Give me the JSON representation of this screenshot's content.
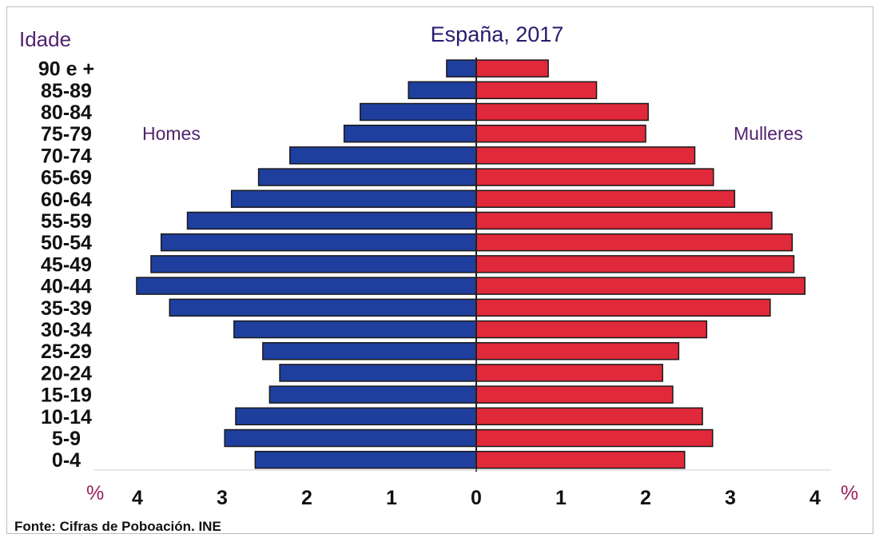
{
  "chart_data": {
    "type": "bar",
    "title": "España, 2017",
    "y_axis_title": "Idade",
    "categories": [
      "90 e +",
      "85-89",
      "80-84",
      "75-79",
      "70-74",
      "65-69",
      "60-64",
      "55-59",
      "50-54",
      "45-49",
      "40-44",
      "35-39",
      "30-34",
      "25-29",
      "20-24",
      "15-19",
      "10-14",
      "5-9",
      "0-4"
    ],
    "series": [
      {
        "name": "Homes",
        "color": "#1f3f9e",
        "values": [
          0.35,
          0.8,
          1.37,
          1.56,
          2.2,
          2.57,
          2.89,
          3.41,
          3.72,
          3.84,
          4.01,
          3.62,
          2.86,
          2.52,
          2.32,
          2.44,
          2.84,
          2.97,
          2.61
        ]
      },
      {
        "name": "Mulleres",
        "color": "#e0293a",
        "values": [
          0.85,
          1.42,
          2.03,
          2.0,
          2.58,
          2.8,
          3.05,
          3.49,
          3.73,
          3.75,
          3.88,
          3.47,
          2.72,
          2.39,
          2.2,
          2.32,
          2.67,
          2.79,
          2.46
        ]
      }
    ],
    "x_ticks": [
      "4",
      "3",
      "2",
      "1",
      "0",
      "1",
      "2",
      "3",
      "4"
    ],
    "x_unit": "%",
    "xlim": [
      -4,
      4
    ],
    "grid": false
  },
  "source": "Fonte: Cifras de Poboación. INE"
}
